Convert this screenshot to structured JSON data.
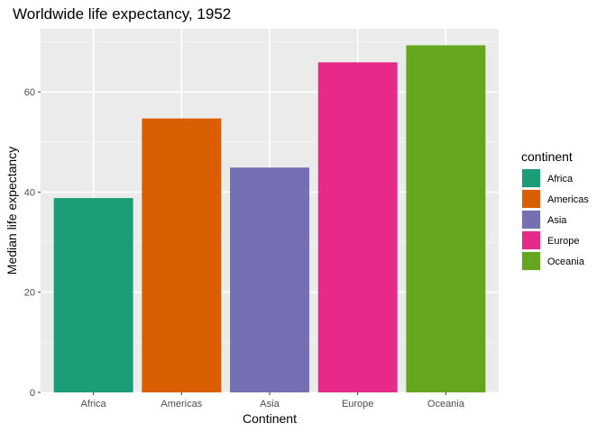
{
  "chart_data": {
    "type": "bar",
    "title": "Worldwide life expectancy, 1952",
    "xlabel": "Continent",
    "ylabel": "Median life expectancy",
    "categories": [
      "Africa",
      "Americas",
      "Asia",
      "Europe",
      "Oceania"
    ],
    "values": [
      38.8,
      54.7,
      44.9,
      65.9,
      69.3
    ],
    "colors": [
      "#1b9e77",
      "#d95f02",
      "#7570b3",
      "#e7298a",
      "#66a61e"
    ],
    "ylim": [
      0,
      72.6
    ],
    "yticks": [
      0,
      20,
      40,
      60
    ],
    "yticks_minor": [
      10,
      30,
      50,
      70
    ],
    "grid": true,
    "legend": {
      "title": "continent",
      "position": "right",
      "items": [
        "Africa",
        "Americas",
        "Asia",
        "Europe",
        "Oceania"
      ]
    }
  }
}
